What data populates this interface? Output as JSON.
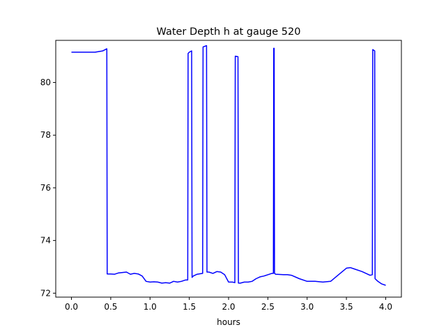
{
  "chart_data": {
    "type": "line",
    "title": "Water Depth h at gauge 520",
    "xlabel": "hours",
    "ylabel": "",
    "xlim": [
      -0.2,
      4.2
    ],
    "ylim": [
      71.85,
      81.6
    ],
    "x_ticks": [
      0.0,
      0.5,
      1.0,
      1.5,
      2.0,
      2.5,
      3.0,
      3.5,
      4.0
    ],
    "x_tick_labels": [
      "0.0",
      "0.5",
      "1.0",
      "1.5",
      "2.0",
      "2.5",
      "3.0",
      "3.5",
      "4.0"
    ],
    "y_ticks": [
      72,
      74,
      76,
      78,
      80
    ],
    "y_tick_labels": [
      "72",
      "74",
      "76",
      "78",
      "80"
    ],
    "grid": false,
    "legend": "none",
    "series": [
      {
        "color": "#0000ff",
        "x": [
          0.0,
          0.2,
          0.3,
          0.4,
          0.45,
          0.455,
          0.5,
          0.55,
          0.6,
          0.7,
          0.75,
          0.8,
          0.85,
          0.9,
          0.95,
          1.0,
          1.05,
          1.1,
          1.15,
          1.2,
          1.25,
          1.3,
          1.35,
          1.4,
          1.45,
          1.48,
          1.485,
          1.5,
          1.53,
          1.535,
          1.55,
          1.6,
          1.67,
          1.675,
          1.72,
          1.725,
          1.75,
          1.8,
          1.85,
          1.9,
          1.95,
          2.0,
          2.05,
          2.08,
          2.085,
          2.12,
          2.125,
          2.15,
          2.2,
          2.25,
          2.3,
          2.35,
          2.4,
          2.45,
          2.5,
          2.55,
          2.57,
          2.575,
          2.58,
          2.585,
          2.6,
          2.7,
          2.75,
          2.8,
          2.9,
          3.0,
          3.1,
          3.2,
          3.3,
          3.4,
          3.5,
          3.55,
          3.6,
          3.7,
          3.8,
          3.83,
          3.835,
          3.86,
          3.865,
          3.9,
          3.95,
          4.0
        ],
        "y": [
          81.15,
          81.15,
          81.15,
          81.2,
          81.28,
          72.73,
          72.73,
          72.72,
          72.77,
          72.8,
          72.72,
          72.75,
          72.73,
          72.65,
          72.45,
          72.42,
          72.43,
          72.42,
          72.38,
          72.4,
          72.38,
          72.45,
          72.42,
          72.45,
          72.5,
          72.5,
          81.1,
          81.15,
          81.2,
          72.6,
          72.65,
          72.72,
          72.75,
          81.35,
          81.4,
          72.8,
          72.8,
          72.75,
          72.82,
          72.8,
          72.7,
          72.42,
          72.42,
          72.4,
          81.0,
          80.98,
          72.38,
          72.38,
          72.42,
          72.42,
          72.45,
          72.55,
          72.62,
          72.65,
          72.7,
          72.75,
          72.75,
          81.3,
          81.3,
          72.75,
          72.72,
          72.7,
          72.7,
          72.68,
          72.55,
          72.45,
          72.45,
          72.42,
          72.45,
          72.7,
          72.95,
          72.97,
          72.92,
          72.82,
          72.68,
          72.7,
          81.25,
          81.2,
          72.55,
          72.45,
          72.35,
          72.3
        ]
      }
    ]
  }
}
